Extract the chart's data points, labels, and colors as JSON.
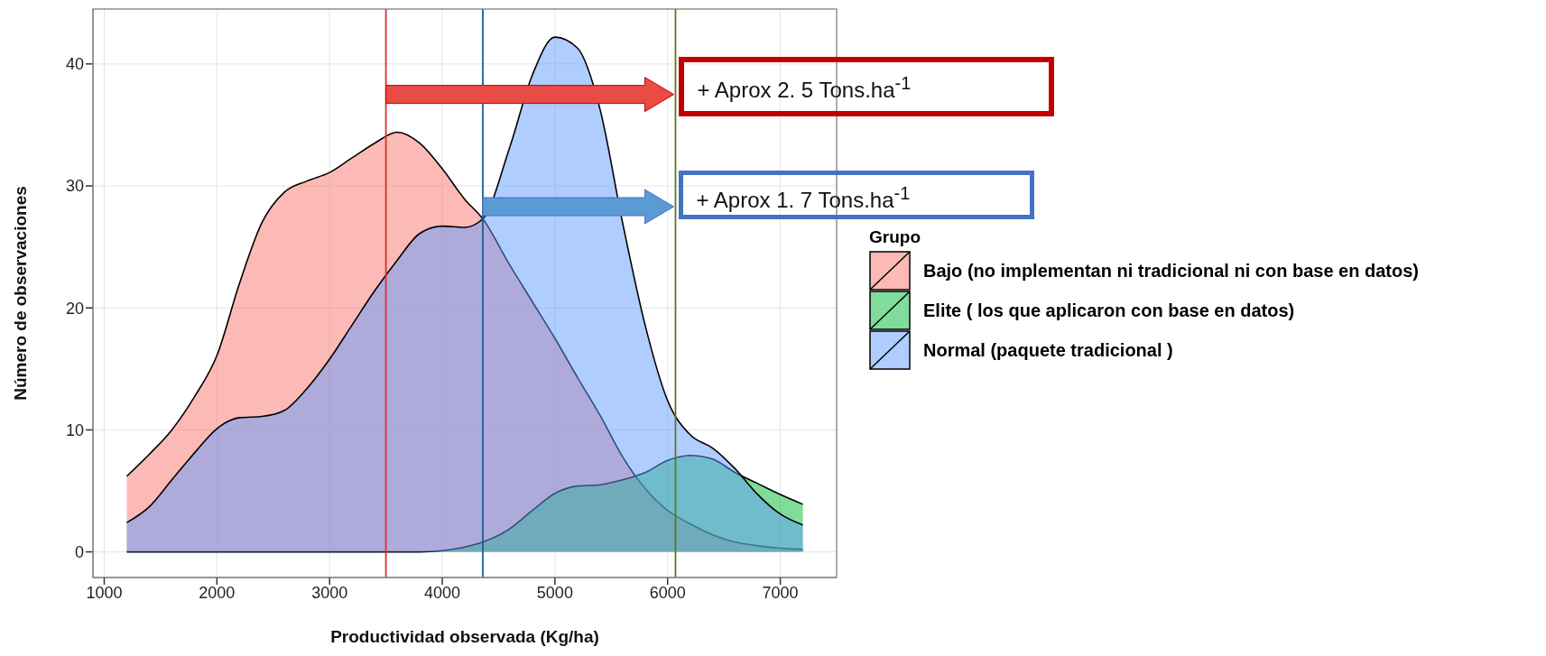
{
  "chart_data": {
    "type": "area",
    "xlabel": "Productividad observada (Kg/ha)",
    "ylabel": "Número de observaciones",
    "legend_title": "Grupo",
    "legend": "right",
    "grid": true,
    "x": [
      1200,
      1400,
      1600,
      1800,
      2000,
      2200,
      2400,
      2600,
      2800,
      3000,
      3200,
      3400,
      3600,
      3800,
      4000,
      4200,
      4360,
      4600,
      4800,
      5000,
      5200,
      5400,
      5600,
      5800,
      6000,
      6200,
      6400,
      6600,
      6800,
      7000,
      7200
    ],
    "xlim": [
      900,
      7500
    ],
    "xticks": [
      1000,
      2000,
      3000,
      4000,
      5000,
      6000,
      7000
    ],
    "ylim": [
      -2.1,
      44.5
    ],
    "yticks": [
      0,
      10,
      20,
      30,
      40
    ],
    "series": [
      {
        "name": "Bajo (no implementan ni tradicional ni con base en datos)",
        "color": "#f8766d",
        "values": [
          6.2,
          8.0,
          10.0,
          12.7,
          16.1,
          22.0,
          27.0,
          29.5,
          30.4,
          31.1,
          32.3,
          33.5,
          34.4,
          33.5,
          31.4,
          28.9,
          27.3,
          23.5,
          20.5,
          17.5,
          14.3,
          11.2,
          7.8,
          5.2,
          3.4,
          2.3,
          1.4,
          0.8,
          0.5,
          0.3,
          0.2
        ]
      },
      {
        "name": "Elite ( los que aplicaron con base en datos)",
        "color": "#00ba38",
        "values": [
          0,
          0,
          0,
          0,
          0,
          0,
          0,
          0,
          0,
          0,
          0,
          0,
          0,
          0,
          0.1,
          0.4,
          0.8,
          1.9,
          3.4,
          4.8,
          5.4,
          5.5,
          5.9,
          6.5,
          7.5,
          7.9,
          7.6,
          6.5,
          5.6,
          4.7,
          3.9
        ]
      },
      {
        "name": "Normal (paquete tradicional )",
        "color": "#619cff",
        "values": [
          2.4,
          3.7,
          5.9,
          8.1,
          10.1,
          11.0,
          11.1,
          11.6,
          13.4,
          15.8,
          18.6,
          21.4,
          23.9,
          26.1,
          26.7,
          26.6,
          27.3,
          33.2,
          39.1,
          42.2,
          41.3,
          36.3,
          27.0,
          18.6,
          12.4,
          9.6,
          8.5,
          6.8,
          4.7,
          3.1,
          2.2
        ]
      }
    ],
    "ref_lines": [
      {
        "axis": "x",
        "value": 3500,
        "color": "#d9302b"
      },
      {
        "axis": "x",
        "value": 4360,
        "color": "#1f5c99"
      },
      {
        "axis": "x",
        "value": 6070,
        "color": "#5a7a1f"
      }
    ],
    "annotations": [
      {
        "text": "+ Aprox 2. 5 Tons.ha$^{-1}$",
        "x": 6070,
        "y": 37.5
      },
      {
        "text": "+ Aprox 1. 7 Tons.ha$^{-1}$",
        "x": 6070,
        "y": 28.3
      }
    ]
  }
}
